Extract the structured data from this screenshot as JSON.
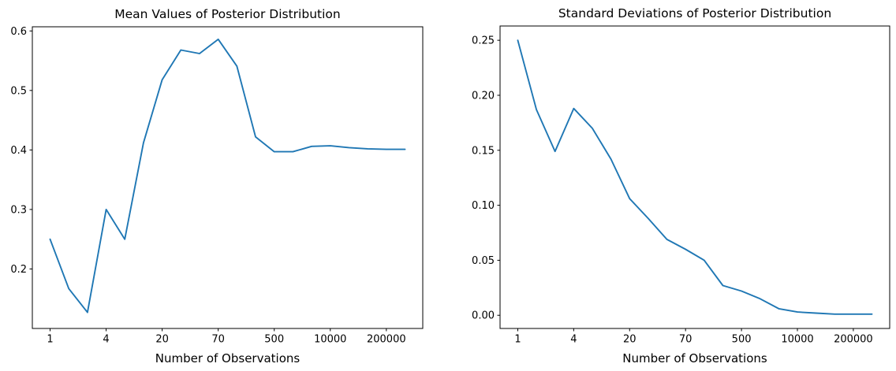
{
  "figure": {
    "background": "#ffffff",
    "text_color": "#000000",
    "spine_color": "#000000"
  },
  "line_color": "#1f77b4",
  "chart_data": [
    {
      "type": "line",
      "title": "Mean Values of Posterior Distribution",
      "xlabel": "Number of Observations",
      "ylabel": "",
      "grid": false,
      "legend": null,
      "num_points": 20,
      "x_tick_labels": [
        "1",
        "4",
        "20",
        "70",
        "500",
        "10000",
        "200000"
      ],
      "x_tick_indices": [
        0,
        3,
        6,
        9,
        12,
        15,
        18
      ],
      "xlim_index": [
        -0.95,
        19.95
      ],
      "y_tick_labels": [
        "0.2",
        "0.3",
        "0.4",
        "0.5",
        "0.6"
      ],
      "y_tick_values": [
        0.2,
        0.3,
        0.4,
        0.5,
        0.6
      ],
      "ylim": [
        0.1,
        0.607
      ],
      "values": [
        0.25,
        0.167,
        0.127,
        0.3,
        0.25,
        0.412,
        0.518,
        0.568,
        0.562,
        0.586,
        0.541,
        0.422,
        0.397,
        0.397,
        0.406,
        0.407,
        0.404,
        0.402,
        0.401,
        0.401
      ]
    },
    {
      "type": "line",
      "title": "Standard Deviations of Posterior Distribution",
      "xlabel": "Number of Observations",
      "ylabel": "",
      "grid": false,
      "legend": null,
      "num_points": 20,
      "x_tick_labels": [
        "1",
        "4",
        "20",
        "70",
        "500",
        "10000",
        "200000"
      ],
      "x_tick_indices": [
        0,
        3,
        6,
        9,
        12,
        15,
        18
      ],
      "xlim_index": [
        -0.95,
        19.95
      ],
      "y_tick_labels": [
        "0.00",
        "0.05",
        "0.10",
        "0.15",
        "0.20",
        "0.25"
      ],
      "y_tick_values": [
        0.0,
        0.05,
        0.1,
        0.15,
        0.2,
        0.25
      ],
      "ylim": [
        -0.012,
        0.263
      ],
      "values": [
        0.25,
        0.187,
        0.149,
        0.188,
        0.17,
        0.142,
        0.106,
        0.088,
        0.069,
        0.06,
        0.05,
        0.027,
        0.022,
        0.015,
        0.006,
        0.003,
        0.002,
        0.001,
        0.001,
        0.001
      ]
    }
  ]
}
